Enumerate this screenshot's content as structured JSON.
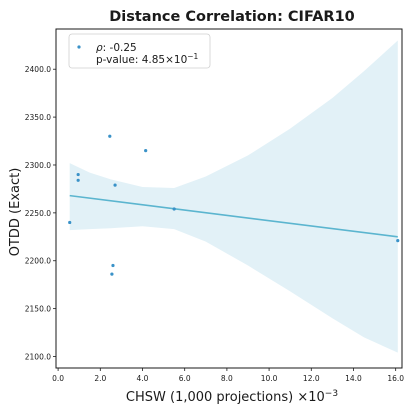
{
  "chart_data": {
    "type": "scatter",
    "title": "Distance Correlation: CIFAR10",
    "xlabel": "CHSW (1,000 projections) ×10",
    "xlabel_exponent": "−3",
    "ylabel": "OTDD (Exact)",
    "xlim": [
      -0.1,
      16.3
    ],
    "ylim": [
      2088,
      2442
    ],
    "x_ticks": [
      0.0,
      2.0,
      4.0,
      6.0,
      8.0,
      10.0,
      12.0,
      14.0,
      16.0
    ],
    "x_tick_labels": [
      "0.0",
      "2.0",
      "4.0",
      "6.0",
      "8.0",
      "10.0",
      "12.0",
      "14.0",
      "16.0"
    ],
    "y_ticks": [
      2100,
      2150,
      2200,
      2250,
      2300,
      2350,
      2400
    ],
    "y_tick_labels": [
      "2100.0",
      "2150.0",
      "2200.0",
      "2250.0",
      "2300.0",
      "2350.0",
      "2400.0"
    ],
    "grid": false,
    "legend_placement": "top-left",
    "legend": {
      "rho_symbol": "ρ",
      "rho_value": ": -0.25",
      "pvalue_label": "p-value: 4.85×10",
      "pvalue_exponent": "−1"
    },
    "points": [
      {
        "x": 0.55,
        "y": 2240
      },
      {
        "x": 0.95,
        "y": 2290
      },
      {
        "x": 0.95,
        "y": 2284
      },
      {
        "x": 2.45,
        "y": 2330
      },
      {
        "x": 2.55,
        "y": 2186
      },
      {
        "x": 2.6,
        "y": 2195
      },
      {
        "x": 2.7,
        "y": 2279
      },
      {
        "x": 4.15,
        "y": 2315
      },
      {
        "x": 5.5,
        "y": 2254
      },
      {
        "x": 16.1,
        "y": 2221
      }
    ],
    "regression_line": {
      "x": [
        0.55,
        16.1
      ],
      "y": [
        2268,
        2225
      ]
    },
    "confidence_band": {
      "x": [
        0.55,
        1.5,
        2.5,
        4.0,
        5.5,
        7.0,
        9.0,
        11.0,
        13.0,
        14.5,
        16.1
      ],
      "upper": [
        2302,
        2292,
        2285,
        2277,
        2276,
        2288,
        2310,
        2338,
        2370,
        2398,
        2430
      ],
      "lower": [
        2232,
        2233,
        2234,
        2236,
        2233,
        2220,
        2195,
        2168,
        2140,
        2120,
        2104
      ]
    },
    "colors": {
      "points": "#3a92c8",
      "line": "#5bb5cf",
      "band": "#e2f1f7",
      "axes": "#1a1a1a"
    }
  }
}
